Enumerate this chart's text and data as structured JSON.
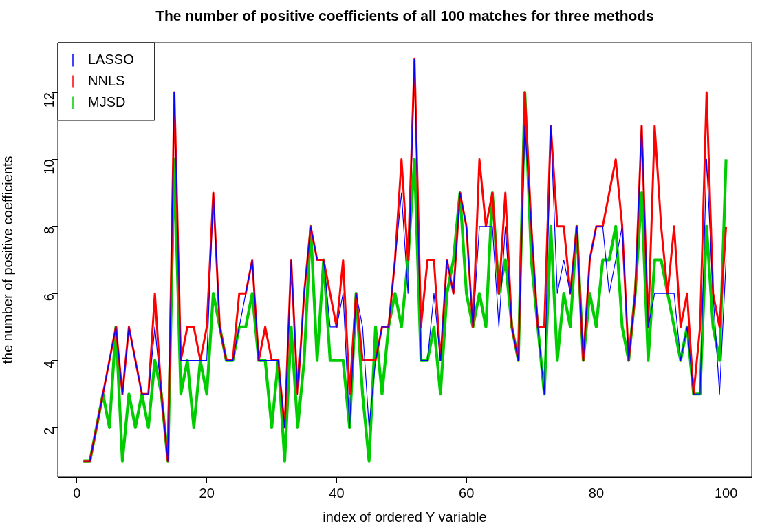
{
  "chart_data": {
    "type": "line",
    "title": "The number of positive coefficients of all 100 matches for three methods",
    "xlabel": "index of ordered Y variable",
    "ylabel": "the number of positive coefficients",
    "x": [
      1,
      2,
      3,
      4,
      5,
      6,
      7,
      8,
      9,
      10,
      11,
      12,
      13,
      14,
      15,
      16,
      17,
      18,
      19,
      20,
      21,
      22,
      23,
      24,
      25,
      26,
      27,
      28,
      29,
      30,
      31,
      32,
      33,
      34,
      35,
      36,
      37,
      38,
      39,
      40,
      41,
      42,
      43,
      44,
      45,
      46,
      47,
      48,
      49,
      50,
      51,
      52,
      53,
      54,
      55,
      56,
      57,
      58,
      59,
      60,
      61,
      62,
      63,
      64,
      65,
      66,
      67,
      68,
      69,
      70,
      71,
      72,
      73,
      74,
      75,
      76,
      77,
      78,
      79,
      80,
      81,
      82,
      83,
      84,
      85,
      86,
      87,
      88,
      89,
      90,
      91,
      92,
      93,
      94,
      95,
      96,
      97,
      98,
      99,
      100
    ],
    "series": [
      {
        "name": "LASSO",
        "color": "#0000ff",
        "values": [
          1,
          1,
          2,
          3,
          4,
          5,
          3,
          5,
          4,
          3,
          3,
          5,
          3,
          1,
          12,
          4,
          4,
          4,
          4,
          4,
          9,
          5,
          4,
          4,
          5,
          6,
          7,
          4,
          4,
          4,
          4,
          2,
          7,
          3,
          6,
          8,
          7,
          7,
          5,
          5,
          6,
          2,
          6,
          5,
          2,
          4,
          5,
          5,
          7,
          9,
          6,
          13,
          4,
          4,
          6,
          4,
          7,
          6,
          9,
          8,
          5,
          8,
          8,
          8,
          5,
          8,
          5,
          4,
          11,
          8,
          5,
          3,
          11,
          6,
          7,
          6,
          8,
          4,
          7,
          8,
          8,
          6,
          7,
          8,
          4,
          6,
          11,
          5,
          6,
          6,
          6,
          6,
          4,
          5,
          3,
          3,
          10,
          6,
          3,
          7
        ]
      },
      {
        "name": "NNLS",
        "color": "#ff0000",
        "values": [
          1,
          1,
          2,
          3,
          4,
          5,
          3,
          5,
          4,
          3,
          3,
          6,
          3,
          1,
          12,
          4,
          5,
          5,
          4,
          5,
          9,
          5,
          4,
          4,
          6,
          6,
          7,
          4,
          5,
          4,
          4,
          2,
          7,
          3,
          6,
          8,
          7,
          7,
          6,
          5,
          7,
          3,
          6,
          4,
          4,
          4,
          5,
          5,
          7,
          10,
          7,
          13,
          5,
          7,
          7,
          4,
          7,
          6,
          9,
          8,
          5,
          10,
          8,
          9,
          6,
          9,
          5,
          4,
          12,
          8,
          5,
          5,
          11,
          8,
          8,
          6,
          8,
          4,
          7,
          8,
          8,
          9,
          10,
          8,
          4,
          6,
          11,
          5,
          11,
          8,
          6,
          8,
          5,
          6,
          3,
          5,
          12,
          6,
          5,
          8
        ]
      },
      {
        "name": "MJSD",
        "color": "#00cd00",
        "values": [
          1,
          1,
          2,
          3,
          2,
          5,
          1,
          3,
          2,
          3,
          2,
          4,
          3,
          1,
          10,
          3,
          4,
          2,
          4,
          3,
          6,
          5,
          4,
          4,
          5,
          5,
          6,
          4,
          4,
          2,
          4,
          1,
          5,
          2,
          4,
          8,
          4,
          7,
          4,
          4,
          4,
          2,
          6,
          3,
          1,
          5,
          3,
          5,
          6,
          5,
          7,
          10,
          4,
          4,
          5,
          3,
          6,
          7,
          9,
          6,
          5,
          6,
          5,
          9,
          6,
          7,
          5,
          4,
          12,
          7,
          5,
          3,
          8,
          4,
          6,
          5,
          8,
          4,
          6,
          5,
          7,
          7,
          8,
          5,
          4,
          6,
          9,
          4,
          7,
          7,
          6,
          5,
          4,
          5,
          3,
          3,
          8,
          5,
          4,
          10
        ]
      }
    ],
    "xlim": [
      -2.96,
      103.96
    ],
    "ylim": [
      0.52,
      13.48
    ],
    "xticks": [
      0,
      20,
      40,
      60,
      80,
      100
    ],
    "yticks": [
      2,
      4,
      6,
      8,
      10,
      12
    ],
    "grid": false,
    "legend": "top left",
    "marker": "none",
    "line_style": "solid"
  }
}
